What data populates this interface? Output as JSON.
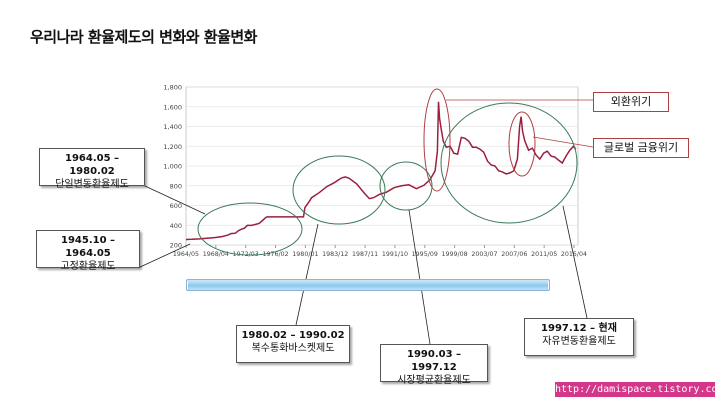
{
  "title": "우리나라 환율제도의 변화와 환율변화",
  "chart_data": {
    "type": "line",
    "ylim": [
      200,
      1800
    ],
    "yticks": [
      200,
      400,
      600,
      800,
      1000,
      1200,
      1400,
      1600,
      1800
    ],
    "ytick_labels": [
      "200",
      "400",
      "600",
      "800",
      "1,000",
      "1,200",
      "1,400",
      "1,600",
      "1,800"
    ],
    "xtick_labels": [
      "1964/05",
      "1968/04",
      "1972/03",
      "1976/02",
      "1980/01",
      "1983/12",
      "1987/11",
      "1991/10",
      "1995/09",
      "1999/08",
      "2003/07",
      "2007/06",
      "2011/05",
      "2015/04"
    ],
    "x": [
      1964.2,
      1964.5,
      1965.0,
      1966.0,
      1967.0,
      1968.0,
      1969.0,
      1969.8,
      1970.2,
      1970.8,
      1971.2,
      1971.6,
      1972.0,
      1972.4,
      1973.0,
      1974.0,
      1974.9,
      1975.1,
      1976.0,
      1977.0,
      1978.0,
      1979.0,
      1979.9,
      1980.1,
      1980.5,
      1981.0,
      1982.0,
      1983.0,
      1984.0,
      1985.0,
      1985.5,
      1986.0,
      1987.0,
      1988.0,
      1988.7,
      1989.3,
      1990.0,
      1991.0,
      1992.0,
      1993.0,
      1994.0,
      1995.0,
      1996.0,
      1996.8,
      1997.5,
      1997.8,
      1997.95,
      1998.1,
      1998.3,
      1998.6,
      1999.0,
      1999.5,
      2000.0,
      2000.5,
      2001.0,
      2001.5,
      2002.0,
      2002.5,
      2003.0,
      2003.5,
      2004.0,
      2004.5,
      2005.0,
      2005.5,
      2006.0,
      2006.5,
      2007.0,
      2007.5,
      2008.0,
      2008.5,
      2008.8,
      2009.0,
      2009.2,
      2009.5,
      2010.0,
      2010.5,
      2011.0,
      2011.5,
      2012.0,
      2012.5,
      2013.0,
      2013.5,
      2014.0,
      2014.5,
      2015.0,
      2015.5,
      2016.0,
      2016.3
    ],
    "y": [
      255,
      257,
      258,
      262,
      268,
      275,
      285,
      300,
      315,
      320,
      345,
      360,
      370,
      398,
      398,
      420,
      480,
      485,
      485,
      485,
      485,
      485,
      485,
      580,
      620,
      680,
      730,
      790,
      830,
      880,
      890,
      875,
      820,
      730,
      670,
      680,
      710,
      735,
      780,
      800,
      810,
      770,
      805,
      860,
      950,
      1150,
      1650,
      1480,
      1380,
      1250,
      1190,
      1200,
      1130,
      1120,
      1290,
      1280,
      1250,
      1190,
      1190,
      1170,
      1140,
      1050,
      1010,
      1000,
      950,
      940,
      920,
      930,
      950,
      1070,
      1400,
      1500,
      1350,
      1250,
      1160,
      1180,
      1110,
      1070,
      1130,
      1150,
      1100,
      1090,
      1060,
      1030,
      1100,
      1160,
      1200,
      1170
    ]
  },
  "annotations": {
    "box_1964": {
      "dates": "1964.05 – 1980.02",
      "name": "단일변동환율제도"
    },
    "box_1945": {
      "dates": "1945.10 – 1964.05",
      "name": "고정환율제도"
    },
    "box_1980": {
      "dates": "1980.02 – 1990.02",
      "name": "복수통화바스켓제도"
    },
    "box_1990": {
      "dates": "1990.03 – 1997.12",
      "name": "시장평균환율제도"
    },
    "box_1997": {
      "dates": "1997.12 – 현재",
      "name": "자유변동환율제도"
    },
    "crisis_1": "외환위기",
    "crisis_2": "글로벌 금융위기"
  },
  "url": "http://damispace.tistory.com",
  "colors": {
    "line": "#9c1f3f",
    "ellipse": "#3a7a5a",
    "callout": "#b04040",
    "url_bg": "#d4378a"
  }
}
